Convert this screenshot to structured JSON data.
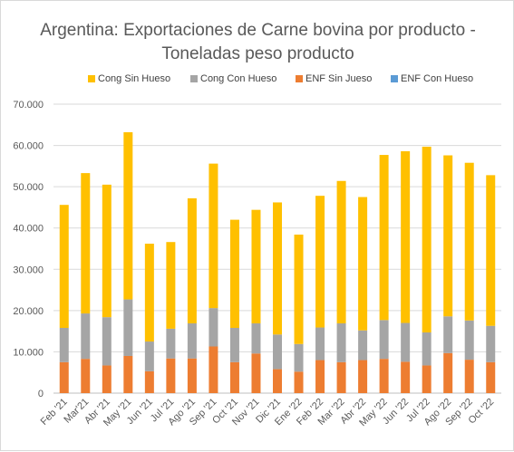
{
  "chart_data": {
    "type": "bar",
    "stacked": true,
    "title": "Argentina: Exportaciones de Carne bovina por producto -",
    "subtitle": "Toneladas peso producto",
    "categories": [
      "Feb '21",
      "Mar'21",
      "Abr '21",
      "May '21",
      "Jun '21",
      "Jul '21",
      "Ago '21",
      "Sep '21",
      "Oct '21",
      "Nov '21",
      "Dic '21",
      "Ene '22",
      "Feb '22",
      "Mar '22",
      "Abr '22",
      "May '22",
      "Jun '22",
      "Jul '22",
      "Ago '22",
      "Sep '22",
      "Oct '22"
    ],
    "series": [
      {
        "name": "ENF Sin Jueso",
        "color": "#ed7d31",
        "values": [
          7500,
          8300,
          6700,
          9000,
          5300,
          8400,
          8400,
          11300,
          7500,
          9600,
          5800,
          5200,
          8000,
          7500,
          8000,
          8300,
          7600,
          6700,
          9700,
          8100,
          7500
        ]
      },
      {
        "name": "ENF Con Hueso",
        "color": "#5b9bd5",
        "values": [
          0,
          0,
          0,
          0,
          0,
          0,
          0,
          0,
          0,
          0,
          0,
          0,
          0,
          0,
          0,
          0,
          0,
          0,
          0,
          0,
          0
        ]
      },
      {
        "name": "Cong Con Hueso",
        "color": "#a5a5a5",
        "values": [
          8300,
          11000,
          11700,
          13700,
          7200,
          7200,
          8500,
          9300,
          8300,
          7300,
          8400,
          6700,
          7900,
          9400,
          7200,
          9400,
          9400,
          8000,
          8900,
          9500,
          8800
        ]
      },
      {
        "name": "Cong Sin Hueso",
        "color": "#ffc000",
        "values": [
          29800,
          34000,
          32100,
          40500,
          23700,
          21000,
          30300,
          35000,
          26200,
          27500,
          32000,
          26500,
          31900,
          34500,
          32300,
          40000,
          41600,
          45000,
          39000,
          38200,
          36500
        ]
      }
    ],
    "legend_order": [
      "Cong Sin Hueso",
      "Cong Con Hueso",
      "ENF Sin Jueso",
      "ENF Con Hueso"
    ],
    "legend_position": "top",
    "ylim": [
      0,
      70000
    ],
    "yticks": [
      0,
      10000,
      20000,
      30000,
      40000,
      50000,
      60000,
      70000
    ],
    "ytick_labels": [
      "0",
      "10.000",
      "20.000",
      "30.000",
      "40.000",
      "50.000",
      "60.000",
      "70.000"
    ],
    "grid": true
  }
}
